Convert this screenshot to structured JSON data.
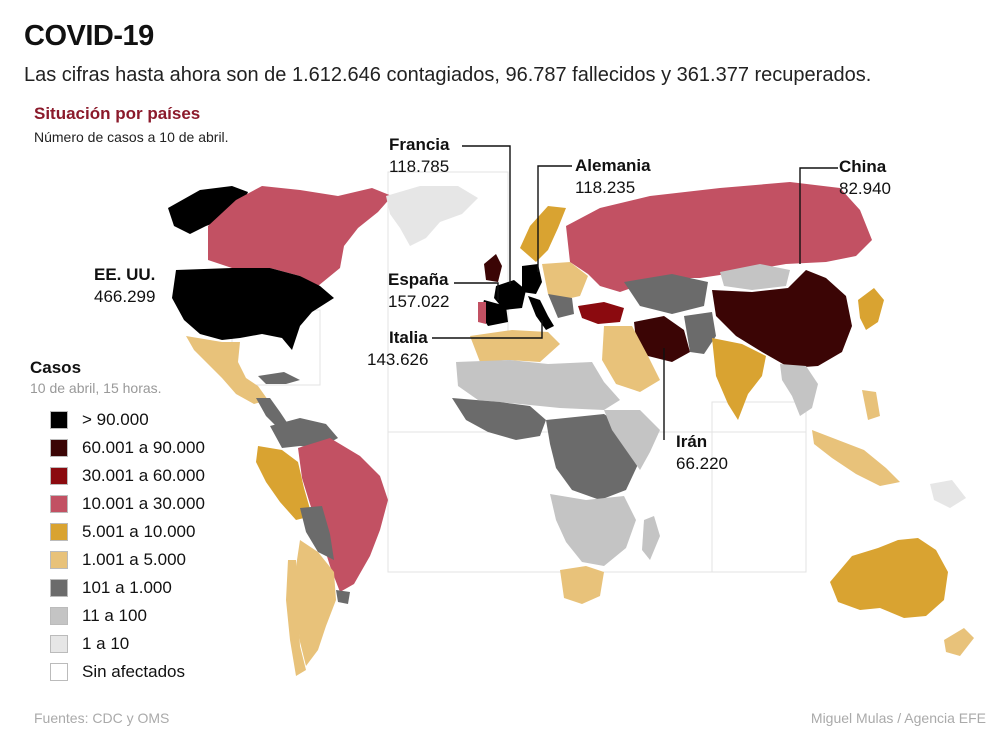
{
  "header": {
    "title": "COVID-19",
    "subtitle": "Las cifras hasta ahora son de 1.612.646 contagiados, 96.787 fallecidos y 361.377 recuperados."
  },
  "section": {
    "title": "Situación por países",
    "note": "Número de casos a 10 de abril."
  },
  "callouts": [
    {
      "name": "Francia",
      "value": "118.785"
    },
    {
      "name": "Alemania",
      "value": "118.235"
    },
    {
      "name": "China",
      "value": "82.940"
    },
    {
      "name": "EE. UU.",
      "value": "466.299"
    },
    {
      "name": "España",
      "value": "157.022"
    },
    {
      "name": "Italia",
      "value": "143.626"
    },
    {
      "name": "Irán",
      "value": "66.220"
    }
  ],
  "legend": {
    "title": "Casos",
    "subtitle": "10 de abril, 15 horas.",
    "items": [
      {
        "label": "> 90.000",
        "color": "#000000"
      },
      {
        "label": "60.001 a 90.000",
        "color": "#3b0505"
      },
      {
        "label": "30.001 a 60.000",
        "color": "#8b0a0f"
      },
      {
        "label": "10.001 a 30.000",
        "color": "#c25163"
      },
      {
        "label": "5.001 a 10.000",
        "color": "#d9a331"
      },
      {
        "label": "1.001 a 5.000",
        "color": "#e8c27a"
      },
      {
        "label": "101 a 1.000",
        "color": "#6b6b6b"
      },
      {
        "label": "11 a 100",
        "color": "#c4c4c4"
      },
      {
        "label": "1 a 10",
        "color": "#e6e6e6"
      },
      {
        "label": "Sin afectados",
        "color": "#ffffff"
      }
    ]
  },
  "footer": {
    "sources": "Fuentes: CDC y OMS",
    "credit": "Miguel Mulas / Agencia EFE"
  }
}
